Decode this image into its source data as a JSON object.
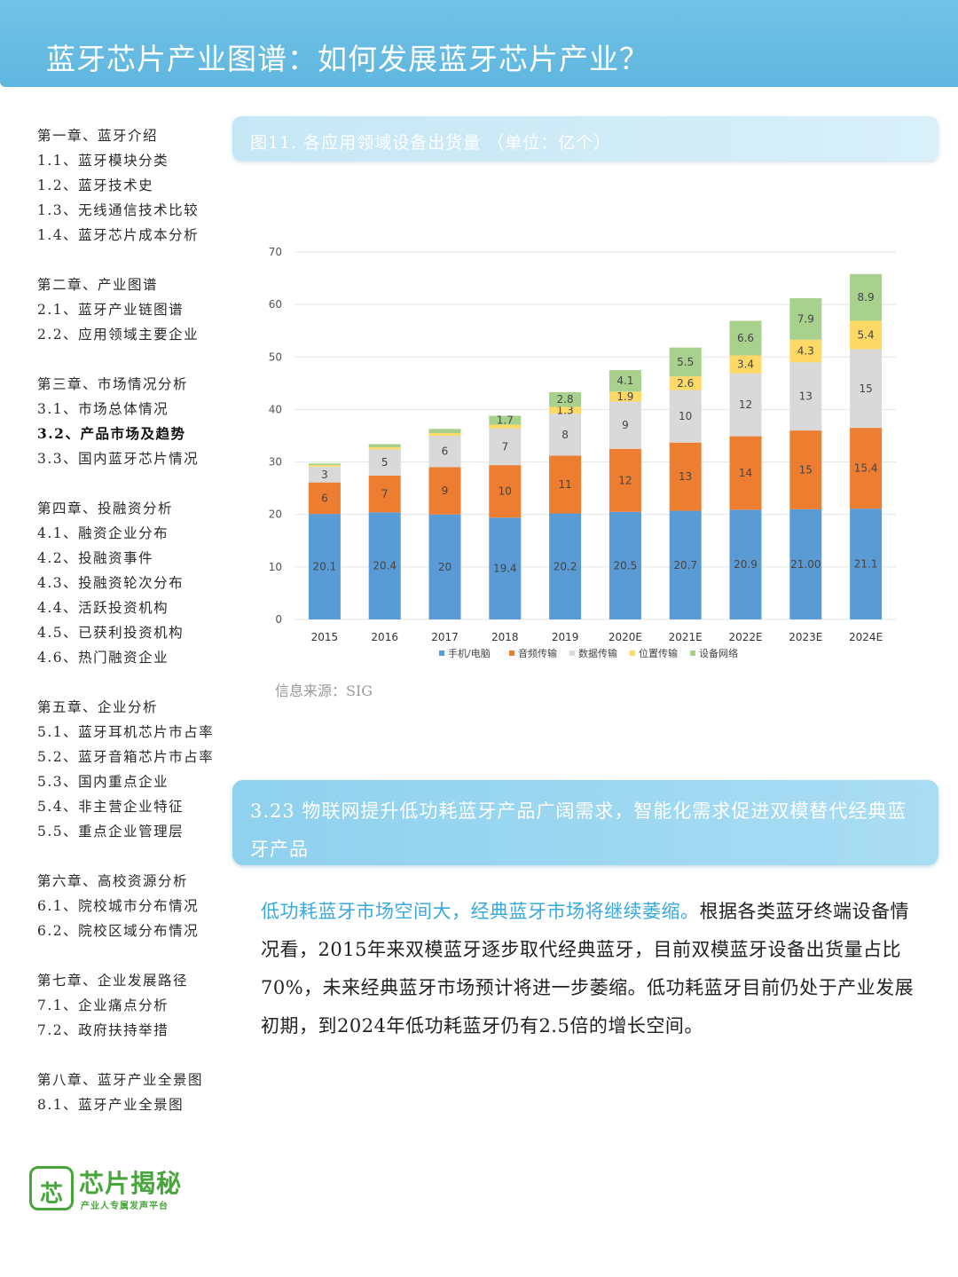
{
  "header": {
    "title": "蓝牙芯片产业图谱：如何发展蓝牙芯片产业？"
  },
  "toc": [
    {
      "items": [
        "第一章、蓝牙介绍",
        "1.1、蓝牙模块分类",
        "1.2、蓝牙技术史",
        "1.3、无线通信技术比较",
        "1.4、蓝牙芯片成本分析"
      ]
    },
    {
      "items": [
        "第二章、产业图谱",
        "2.1、蓝牙产业链图谱",
        "2.2、应用领域主要企业"
      ]
    },
    {
      "items": [
        "第三章、市场情况分析",
        "3.1、市场总体情况",
        "3.2、产品市场及趋势",
        "3.3、国内蓝牙芯片情况"
      ]
    },
    {
      "items": [
        "第四章、投融资分析",
        "4.1、融资企业分布",
        "4.2、投融资事件",
        "4.3、投融资轮次分布",
        "4.4、活跃投资机构",
        "4.5、已获利投资机构",
        "4.6、热门融资企业"
      ]
    },
    {
      "items": [
        "第五章、企业分析",
        "5.1、蓝牙耳机芯片市占率",
        "5.2、蓝牙音箱芯片市占率",
        "5.3、国内重点企业",
        "5.4、非主营企业特征",
        "5.5、重点企业管理层"
      ]
    },
    {
      "items": [
        "第六章、高校资源分析",
        "6.1、院校城市分布情况",
        "6.2、院校区域分布情况"
      ]
    },
    {
      "items": [
        "第七章、企业发展路径",
        "7.1、企业痛点分析",
        "7.2、政府扶持举措"
      ]
    },
    {
      "items": [
        "第八章、蓝牙产业全景图",
        "8.1、蓝牙产业全景图"
      ]
    }
  ],
  "toc_active": "3.2、产品市场及趋势",
  "figure": {
    "title": "图11. 各应用领域设备出货量      （单位：亿个）"
  },
  "chart_data": {
    "type": "bar",
    "stacked": true,
    "categories": [
      "2015",
      "2016",
      "2017",
      "2018",
      "2019",
      "2020E",
      "2021E",
      "2022E",
      "2023E",
      "2024E"
    ],
    "series": [
      {
        "name": "手机/电脑",
        "color": "#5b9bd5",
        "values": [
          20.1,
          20.4,
          20,
          19.4,
          20.2,
          20.5,
          20.7,
          20.9,
          21.0,
          21.1
        ],
        "labels": [
          "20.1",
          "20.4",
          "20",
          "19.4",
          "20.2",
          "20.5",
          "20.7",
          "20.9",
          "21.00",
          "21.1"
        ]
      },
      {
        "name": "音频传输",
        "color": "#ed7d31",
        "values": [
          6,
          7,
          9,
          10,
          11,
          12,
          13,
          14,
          15,
          15.4
        ],
        "labels": [
          "6",
          "7",
          "9",
          "10",
          "11",
          "12",
          "13",
          "14",
          "15",
          "15.4"
        ]
      },
      {
        "name": "数据传输",
        "color": "#d9d9d9",
        "values": [
          3,
          5,
          6,
          7,
          8,
          9,
          10,
          12,
          13,
          15
        ],
        "labels": [
          "3",
          "5",
          "6",
          "7",
          "8",
          "9",
          "10",
          "12",
          "13",
          "15"
        ]
      },
      {
        "name": "位置传输",
        "color": "#ffd966",
        "values": [
          0.3,
          0.4,
          0.5,
          0.7,
          1.3,
          1.9,
          2.6,
          3.4,
          4.3,
          5.4
        ],
        "labels": [
          "",
          "",
          "",
          "",
          "1.3",
          "1.9",
          "2.6",
          "3.4",
          "4.3",
          "5.4"
        ]
      },
      {
        "name": "设备网络",
        "color": "#a9d18e",
        "values": [
          0.3,
          0.6,
          0.8,
          1.7,
          2.8,
          4.1,
          5.5,
          6.6,
          7.9,
          8.9
        ],
        "labels": [
          "",
          "",
          "",
          "1.7",
          "2.8",
          "4.1",
          "5.5",
          "6.6",
          "7.9",
          "8.9"
        ]
      }
    ],
    "yticks": [
      "0",
      "10",
      "20",
      "30",
      "40",
      "50",
      "60",
      "70"
    ],
    "ylim": [
      0,
      70
    ],
    "grid": true,
    "legend_position": "bottom"
  },
  "source": "信息来源：SIG",
  "section": {
    "title": "3.23 物联网提升低功耗蓝牙产品广阔需求，智能化需求促进双模替代经典蓝牙产品"
  },
  "paragraph": {
    "highlight": "低功耗蓝牙市场空间大，经典蓝牙市场将继续萎缩。",
    "text": "根据各类蓝牙终端设备情况看，2015年来双模蓝牙逐步取代经典蓝牙，目前双模蓝牙设备出货量占比70%，未来经典蓝牙市场预计将进一步萎缩。低功耗蓝牙目前仍处于产业发展初期，到2024年低功耗蓝牙仍有2.5倍的增长空间。"
  },
  "logo": {
    "mark": "芯",
    "name": "芯片揭秘",
    "tagline": "产业人专属发声平台"
  }
}
